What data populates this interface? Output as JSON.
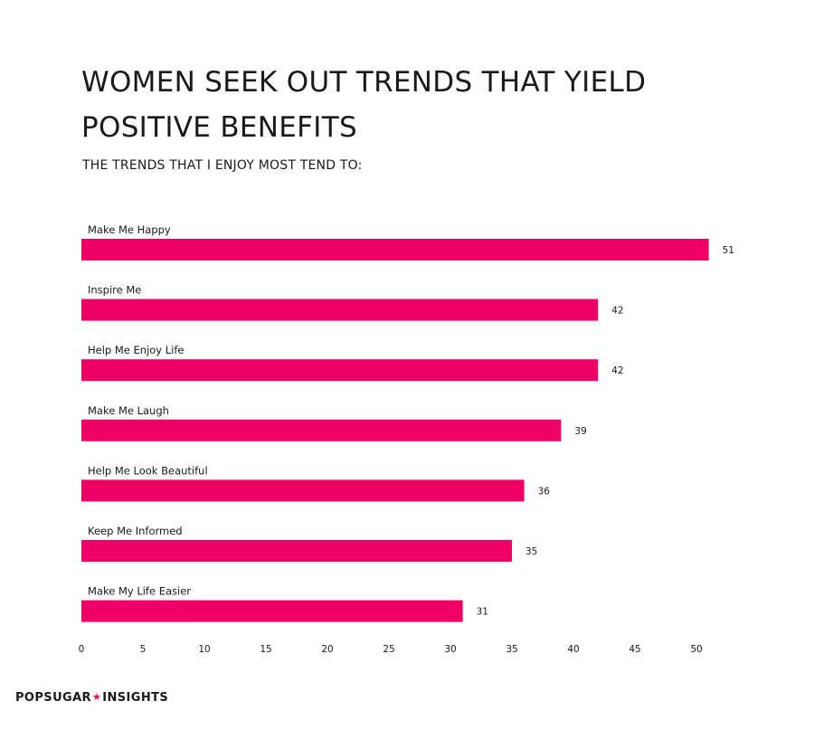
{
  "title": "WOMEN SEEK OUT TRENDS THAT YIELD POSITIVE BENEFITS",
  "subtitle": "THE TRENDS THAT I ENJOY MOST TEND TO:",
  "brand": {
    "left": "POPSUGAR",
    "star": "★",
    "right": "INSIGHTS"
  },
  "colors": {
    "bar": "#ee0066",
    "text": "#1a1a1a"
  },
  "chart_data": {
    "type": "bar",
    "orientation": "horizontal",
    "categories": [
      "Make Me Happy",
      "Inspire Me",
      "Help Me Enjoy Life",
      "Make Me Laugh",
      "Help Me Look Beautiful",
      "Keep Me Informed",
      "Make My Life Easier"
    ],
    "values": [
      51,
      42,
      42,
      39,
      36,
      35,
      31
    ],
    "title": "WOMEN SEEK OUT TRENDS THAT YIELD POSITIVE BENEFITS",
    "subtitle": "THE TRENDS THAT I ENJOY MOST TEND TO:",
    "xlabel": "",
    "ylabel": "",
    "xlim": [
      0,
      52
    ],
    "xticks": [
      0,
      5,
      10,
      15,
      20,
      25,
      30,
      35,
      40,
      45,
      50
    ],
    "grid": false,
    "legend": "none",
    "data_labels": true
  }
}
